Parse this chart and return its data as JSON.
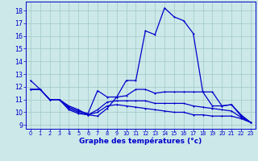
{
  "title": "Graphe des températures (°c)",
  "bg_color": "#cce8e8",
  "grid_color": "#9fc8c8",
  "line_color": "#0000cc",
  "xlim": [
    -0.5,
    23.5
  ],
  "ylim": [
    8.7,
    18.7
  ],
  "yticks": [
    9,
    10,
    11,
    12,
    13,
    14,
    15,
    16,
    17,
    18
  ],
  "xticks": [
    0,
    1,
    2,
    3,
    4,
    5,
    6,
    7,
    8,
    9,
    10,
    11,
    12,
    13,
    14,
    15,
    16,
    17,
    18,
    19,
    20,
    21,
    22,
    23
  ],
  "series": [
    [
      12.5,
      11.8,
      11.0,
      11.0,
      10.5,
      10.2,
      9.8,
      9.7,
      10.3,
      11.2,
      12.5,
      12.5,
      16.4,
      16.1,
      18.2,
      17.5,
      17.2,
      16.2,
      11.6,
      11.6,
      10.5,
      10.6,
      9.8,
      9.2
    ],
    [
      11.8,
      11.8,
      11.0,
      11.0,
      10.4,
      10.1,
      9.9,
      11.7,
      11.2,
      11.2,
      11.3,
      11.8,
      11.8,
      11.5,
      11.6,
      11.6,
      11.6,
      11.6,
      11.6,
      10.5,
      10.5,
      10.6,
      9.7,
      9.2
    ],
    [
      11.8,
      11.8,
      11.0,
      11.0,
      10.3,
      10.0,
      9.8,
      10.2,
      10.8,
      10.9,
      10.9,
      10.9,
      10.9,
      10.7,
      10.7,
      10.7,
      10.7,
      10.5,
      10.4,
      10.3,
      10.2,
      10.1,
      9.6,
      9.2
    ],
    [
      11.8,
      11.8,
      11.0,
      11.0,
      10.2,
      9.9,
      9.8,
      10.0,
      10.5,
      10.6,
      10.5,
      10.4,
      10.3,
      10.2,
      10.1,
      10.0,
      10.0,
      9.8,
      9.8,
      9.7,
      9.7,
      9.7,
      9.5,
      9.2
    ]
  ],
  "ylabel_fontsize": 6.0,
  "xlabel_fontsize": 6.5,
  "xtick_fontsize": 4.8,
  "ytick_fontsize": 5.8,
  "linewidth": 0.9,
  "markersize": 2.0
}
